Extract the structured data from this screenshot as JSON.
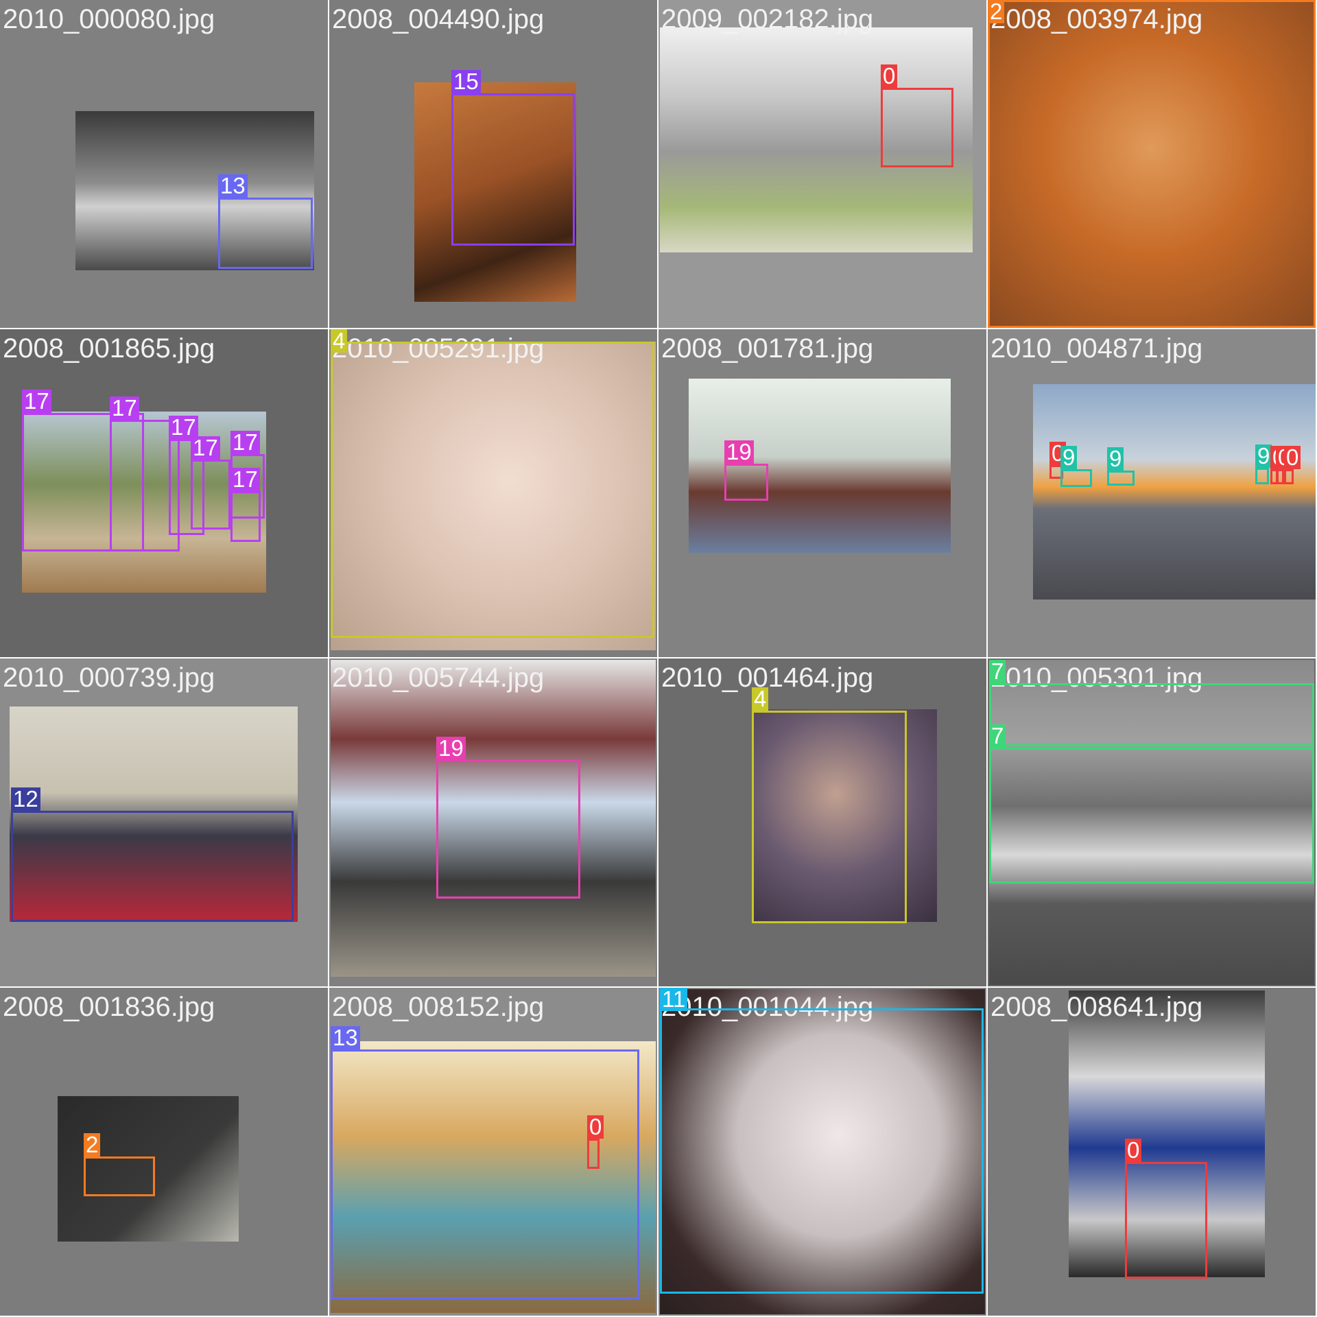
{
  "class_colors": {
    "0": "#ee3b3b",
    "2": "#f47b20",
    "4": "#c8c82a",
    "7": "#3fd67a",
    "9": "#20c2a8",
    "11": "#1ab8e8",
    "12": "#3a3f9e",
    "13": "#6868f0",
    "15": "#8a3ff0",
    "17": "#b83ff0",
    "19": "#e83fb0"
  },
  "tiles": [
    {
      "filename": "2010_000080.jpg",
      "boxes": [
        {
          "label": "13"
        }
      ]
    },
    {
      "filename": "2008_004490.jpg",
      "boxes": [
        {
          "label": "15"
        }
      ]
    },
    {
      "filename": "2009_002182.jpg",
      "boxes": [
        {
          "label": "0"
        }
      ]
    },
    {
      "filename": "2008_003974.jpg",
      "boxes": [
        {
          "label": "2"
        }
      ]
    },
    {
      "filename": "2008_001865.jpg",
      "boxes": [
        {
          "label": "17"
        },
        {
          "label": "17"
        },
        {
          "label": "17"
        },
        {
          "label": "17"
        },
        {
          "label": "17"
        },
        {
          "label": "17"
        }
      ]
    },
    {
      "filename": "2010_005291.jpg",
      "boxes": [
        {
          "label": "4"
        }
      ]
    },
    {
      "filename": "2008_001781.jpg",
      "boxes": [
        {
          "label": "19"
        }
      ]
    },
    {
      "filename": "2010_004871.jpg",
      "boxes": [
        {
          "label": "0"
        },
        {
          "label": "9"
        },
        {
          "label": "9"
        },
        {
          "label": "9"
        },
        {
          "label": "0"
        },
        {
          "label": "0"
        },
        {
          "label": "0"
        }
      ]
    },
    {
      "filename": "2010_000739.jpg",
      "boxes": [
        {
          "label": "12"
        }
      ]
    },
    {
      "filename": "2010_005744.jpg",
      "boxes": [
        {
          "label": "19"
        }
      ]
    },
    {
      "filename": "2010_001464.jpg",
      "boxes": [
        {
          "label": "4"
        }
      ]
    },
    {
      "filename": "2010_005301.jpg",
      "boxes": [
        {
          "label": "7"
        },
        {
          "label": "7"
        }
      ]
    },
    {
      "filename": "2008_001836.jpg",
      "boxes": [
        {
          "label": "2"
        }
      ]
    },
    {
      "filename": "2008_008152.jpg",
      "boxes": [
        {
          "label": "13"
        },
        {
          "label": "0"
        }
      ]
    },
    {
      "filename": "2010_001044.jpg",
      "boxes": [
        {
          "label": "11"
        }
      ]
    },
    {
      "filename": "2008_008641.jpg",
      "boxes": [
        {
          "label": "0"
        }
      ]
    }
  ]
}
